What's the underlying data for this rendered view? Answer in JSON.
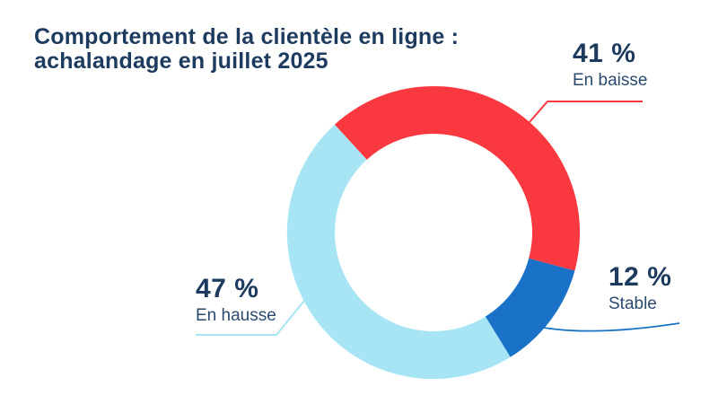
{
  "title": "Comportement de la clientèle en ligne : achalandage en juillet 2025",
  "colors": {
    "red": "#f93840",
    "blue": "#1971c8",
    "light_blue": "#a8e5f4",
    "navy_bold": "#1d3b5f",
    "navy_light": "#2b4a70",
    "background": "#ffffff"
  },
  "chart_data": {
    "type": "pie",
    "subtype": "donut",
    "title": "Comportement de la clientèle en ligne : achalandage en juillet 2025",
    "slices": [
      {
        "label": "En baisse",
        "value_pct": 41,
        "display": "41 %",
        "color": "#f93840"
      },
      {
        "label": "Stable",
        "value_pct": 12,
        "display": "12 %",
        "color": "#1971c8"
      },
      {
        "label": "En hausse",
        "value_pct": 47,
        "display": "47 %",
        "color": "#a8e5f4"
      }
    ],
    "rotation_deg": -42.5,
    "donut_hole_ratio": 0.675,
    "legend_position": "callout-labels",
    "grid": "off"
  }
}
